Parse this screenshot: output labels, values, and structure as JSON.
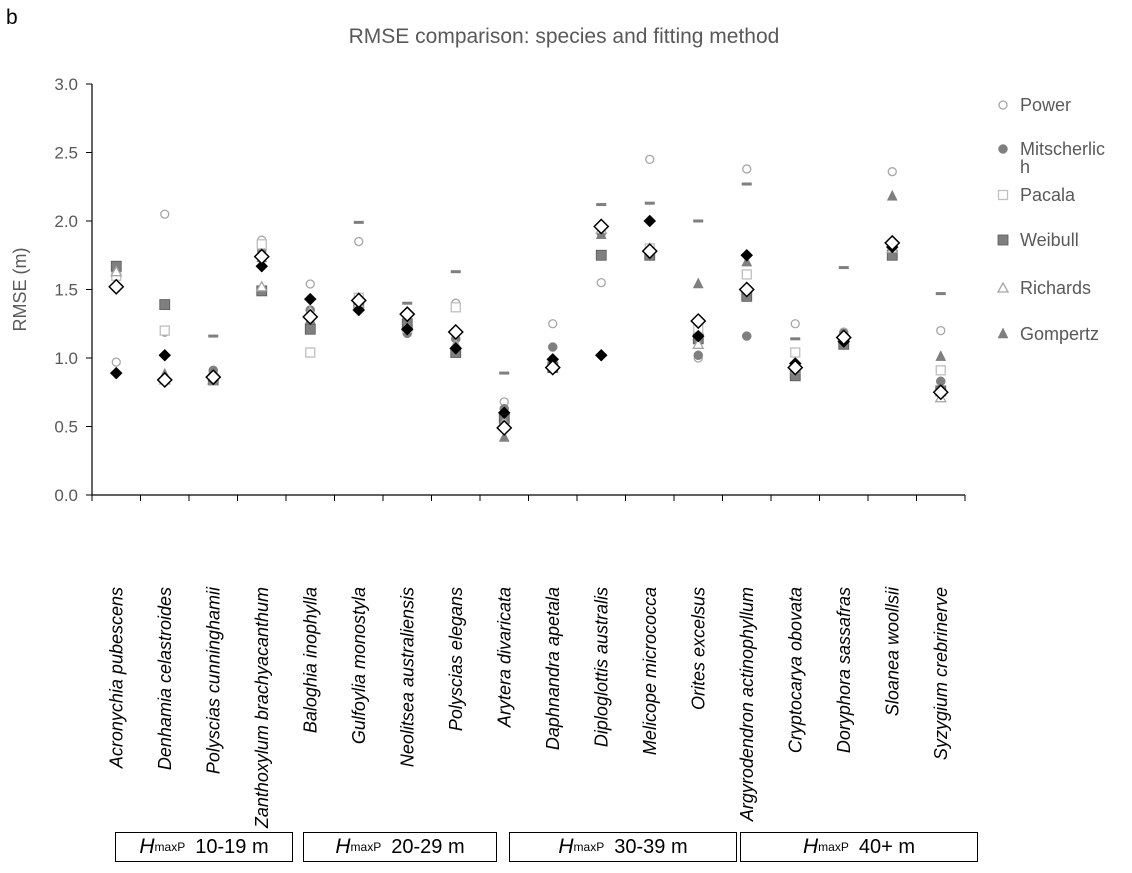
{
  "panel_label": "b",
  "chart_data": {
    "type": "scatter",
    "title": "RMSE comparison: species and fitting method",
    "xlabel": "",
    "ylabel": "RMSE  (m)",
    "ylim": [
      0,
      3.0
    ],
    "y_ticks": [
      "0.0",
      "0.5",
      "1.0",
      "1.5",
      "2.0",
      "2.5",
      "3.0"
    ],
    "grid": false,
    "legend_position": "right",
    "categories": [
      "Acronychia pubescens",
      "Denhamia celastroides",
      "Polyscias cunninghamii",
      "Zanthoxylum brachyacanthum",
      "Baloghia inophylla",
      "Gulfoylia monostyla",
      "Neolitsea australiensis",
      "Polyscias elegans",
      "Arytera divaricata",
      "Daphnandra apetala",
      "Diploglottis australis",
      "Melicope micrococca",
      "Orites excelsus",
      "Argyrodendron actinophyllum",
      "Cryptocarya obovata",
      "Doryphora sassafras",
      "Sloanea woollsii",
      "Syzygium crebrinerve"
    ],
    "series": [
      {
        "name": "Power",
        "marker": "circle-open",
        "color": "#a6a6a6",
        "values": [
          0.97,
          2.05,
          0.89,
          1.86,
          1.54,
          1.85,
          1.19,
          1.4,
          0.68,
          1.25,
          1.55,
          2.45,
          1.0,
          2.38,
          1.25,
          1.19,
          2.36,
          1.2
        ]
      },
      {
        "name": "Mitscherlic\nh",
        "marker": "circle-filled",
        "color": "#7f7f7f",
        "values": [
          1.52,
          1.19,
          0.91,
          1.78,
          1.35,
          1.42,
          1.18,
          1.14,
          0.63,
          1.08,
          1.91,
          1.79,
          1.02,
          1.16,
          0.88,
          1.18,
          1.83,
          0.83
        ]
      },
      {
        "name": "Pacala",
        "marker": "square-open",
        "color": "#bfbfbf",
        "values": [
          1.6,
          1.2,
          0.85,
          1.83,
          1.04,
          1.44,
          1.22,
          1.37,
          0.55,
          0.96,
          1.75,
          1.8,
          1.22,
          1.61,
          1.04,
          1.14,
          1.82,
          0.91
        ]
      },
      {
        "name": "Weibull",
        "marker": "square-filled",
        "color": "#7f7f7f",
        "values": [
          1.67,
          1.39,
          0.84,
          1.49,
          1.21,
          1.4,
          1.25,
          1.04,
          0.56,
          0.93,
          1.75,
          1.75,
          1.14,
          1.45,
          0.87,
          1.1,
          1.75,
          0.76
        ]
      },
      {
        "name": "Richards",
        "marker": "triangle-open",
        "color": "#a6a6a6",
        "values": [
          1.63,
          0.84,
          0.84,
          1.52,
          1.34,
          1.4,
          1.23,
          1.1,
          0.53,
          0.95,
          1.94,
          1.8,
          1.1,
          1.51,
          0.92,
          1.16,
          1.8,
          0.71
        ]
      },
      {
        "name": "Gompertz",
        "marker": "triangle-filled",
        "color": "#7f7f7f",
        "values": [
          1.53,
          0.88,
          0.84,
          1.73,
          1.28,
          1.42,
          1.28,
          1.08,
          0.42,
          0.96,
          1.9,
          1.78,
          1.54,
          1.7,
          0.92,
          1.14,
          2.18,
          1.01
        ]
      }
    ],
    "extra_markers": [
      {
        "marker": "dash",
        "color": "#7f7f7f",
        "values": [
          null,
          null,
          1.16,
          null,
          null,
          1.99,
          1.4,
          1.63,
          0.89,
          null,
          2.12,
          2.13,
          2.0,
          2.27,
          1.14,
          1.66,
          null,
          1.47
        ]
      },
      {
        "marker": "diamond-filled",
        "color": "#000000",
        "values": [
          0.89,
          1.02,
          0.85,
          1.67,
          1.43,
          1.35,
          1.21,
          1.07,
          0.6,
          0.99,
          1.02,
          2.0,
          1.16,
          1.75,
          0.96,
          1.12,
          1.81,
          0.74
        ]
      },
      {
        "marker": "diamond-open",
        "color": "#000000",
        "values": [
          1.52,
          0.84,
          0.86,
          1.74,
          1.3,
          1.42,
          1.32,
          1.19,
          0.49,
          0.93,
          1.96,
          1.78,
          1.27,
          1.5,
          0.93,
          1.15,
          1.84,
          0.75
        ]
      }
    ],
    "groups": [
      {
        "symbol": "H",
        "subscript": "maxP",
        "label": "10-19 m",
        "start": 0,
        "end": 3
      },
      {
        "symbol": "H",
        "subscript": "maxP",
        "label": "20-29 m",
        "start": 4,
        "end": 7
      },
      {
        "symbol": "H",
        "subscript": "maxP",
        "label": "30-39 m",
        "start": 8,
        "end": 12
      },
      {
        "symbol": "H",
        "subscript": "maxP",
        "label": "40+ m",
        "start": 13,
        "end": 17
      }
    ]
  }
}
